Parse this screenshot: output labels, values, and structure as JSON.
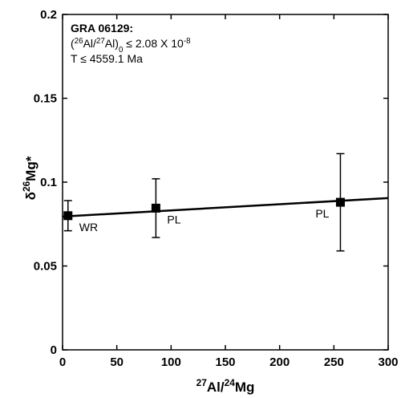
{
  "chart_data": {
    "type": "scatter",
    "annotation": [
      [
        {
          "text": "GRA 06129:",
          "style": "bold"
        }
      ],
      [
        {
          "text": "(",
          "style": "normal"
        },
        {
          "text": "26",
          "style": "sup"
        },
        {
          "text": "Al/",
          "style": "normal"
        },
        {
          "text": "27",
          "style": "sup"
        },
        {
          "text": "Al)",
          "style": "normal"
        },
        {
          "text": "0",
          "style": "sub"
        },
        {
          "text": " ≤ 2.08 X 10",
          "style": "normal"
        },
        {
          "text": "-8",
          "style": "sup"
        }
      ],
      [
        {
          "text": "T ≤ 4559.1 Ma",
          "style": "normal"
        }
      ]
    ],
    "xlabel": [
      {
        "text": "27",
        "style": "sup"
      },
      {
        "text": "Al/",
        "style": "normal"
      },
      {
        "text": "24",
        "style": "sup"
      },
      {
        "text": "Mg",
        "style": "normal"
      }
    ],
    "ylabel": [
      {
        "text": "δ",
        "style": "normal"
      },
      {
        "text": "26",
        "style": "sup"
      },
      {
        "text": "Mg*",
        "style": "normal"
      }
    ],
    "x": [
      5,
      86,
      256
    ],
    "values": [
      0.08,
      0.0845,
      0.088
    ],
    "errors": [
      0.009,
      0.0175,
      0.029
    ],
    "point_labels": [
      "WR",
      "PL",
      "PL"
    ],
    "color": "#000000",
    "fit": {
      "x": [
        0,
        300
      ],
      "y": [
        0.0795,
        0.0905
      ]
    },
    "xlim": [
      0,
      300
    ],
    "xticks": [
      0,
      50,
      100,
      150,
      200,
      250,
      300
    ],
    "ylim": [
      0,
      0.2
    ],
    "yticks": [
      0,
      0.05,
      0.1,
      0.15,
      0.2
    ]
  }
}
